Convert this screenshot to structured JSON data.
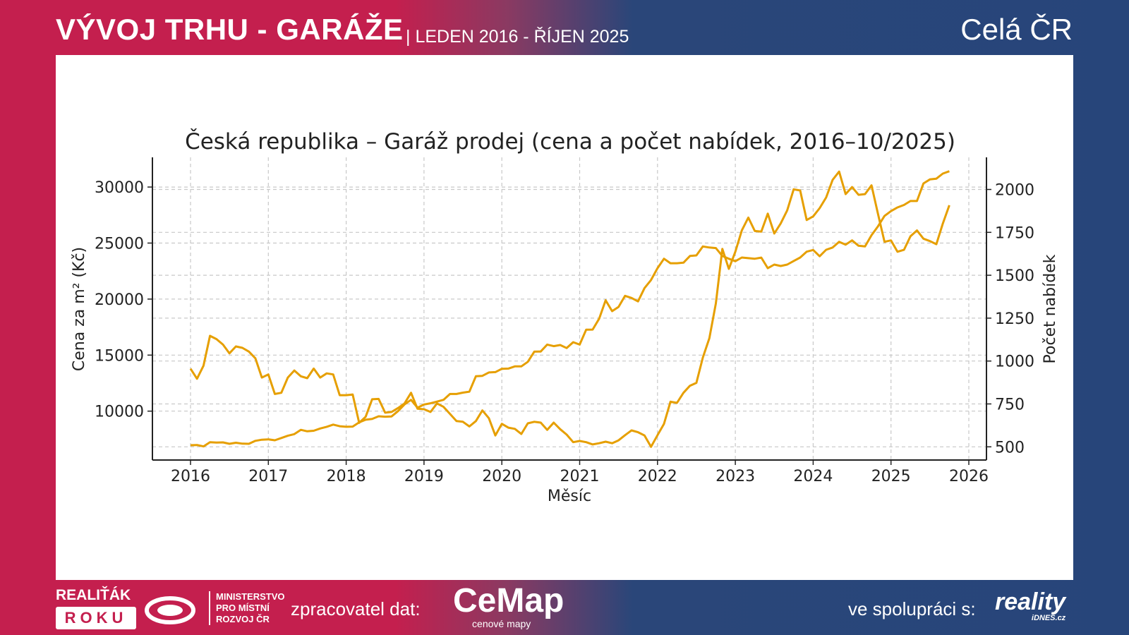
{
  "header": {
    "title": "VÝVOJ TRHU - GARÁŽE",
    "subtitle": "| LEDEN 2016 - ŘÍJEN 2025",
    "region": "Celá ČR"
  },
  "footer": {
    "realitak_line1": "REALIŤÁK",
    "realitak_line2": "ROKU",
    "ministry": [
      "MINISTERSTVO",
      "PRO MÍSTNÍ",
      "ROZVOJ ČR"
    ],
    "processor_label": "zpracovatel dat:",
    "cemap_logo": "CeMap",
    "cemap_tagline": "cenové mapy",
    "partner_label": "ve spolupráci s:",
    "reality_logo": "reality",
    "reality_sub": "iDNES.cz"
  },
  "chart_data": {
    "type": "line",
    "title": "Česká republika – Garáž prodej (cena a počet nabídek, 2016–10/2025)",
    "xlabel": "Měsíc",
    "ylabel": "Cena za m² (Kč)",
    "y2label": "Počet nabídek",
    "xlim": [
      2015.5,
      2026.25
    ],
    "ylim": [
      6350,
      32800
    ],
    "y2lim": [
      450,
      2120
    ],
    "xticks": [
      "2016",
      "2017",
      "2018",
      "2019",
      "2020",
      "2021",
      "2022",
      "2023",
      "2024",
      "2025",
      "2026"
    ],
    "yticks": [
      10000,
      15000,
      20000,
      25000,
      30000
    ],
    "y2ticks": [
      500,
      750,
      1000,
      1250,
      1500,
      1750,
      2000
    ],
    "grid": true,
    "color": "#e69f00",
    "start": "2016-01",
    "end": "2025-10",
    "series": [
      {
        "name": "Cena za m² (Kč)",
        "axis": "left",
        "values": [
          6960,
          6980,
          6850,
          7230,
          7200,
          7210,
          7085,
          7180,
          7100,
          7085,
          7350,
          7450,
          7480,
          7400,
          7600,
          7800,
          7950,
          8330,
          8200,
          8250,
          8450,
          8600,
          8800,
          8650,
          8600,
          8620,
          9000,
          9230,
          9300,
          9540,
          9500,
          9530,
          10000,
          10600,
          11010,
          10300,
          10590,
          10700,
          10850,
          11010,
          11530,
          11530,
          11650,
          11740,
          13110,
          13150,
          13450,
          13480,
          13780,
          13800,
          13990,
          13990,
          14400,
          15310,
          15320,
          15940,
          15800,
          15900,
          15630,
          16150,
          15940,
          17270,
          17280,
          18250,
          19890,
          18920,
          19300,
          20290,
          20100,
          19790,
          20980,
          21700,
          22760,
          23600,
          23200,
          23200,
          23250,
          23850,
          23900,
          24700,
          24600,
          24550,
          23850,
          23600,
          23380,
          23710,
          23650,
          23600,
          23700,
          22760,
          23080,
          22950,
          23080,
          23400,
          23710,
          24230,
          24380,
          23820,
          24400,
          24600,
          25110,
          24860,
          25240,
          24760,
          24700,
          25700,
          26500,
          27420,
          27850,
          28180,
          28400,
          28750,
          28750,
          30320,
          30680,
          30750,
          31200,
          31410
        ]
      },
      {
        "name": "Počet nabídek",
        "axis": "right",
        "values": [
          955,
          897,
          973,
          1147,
          1128,
          1096,
          1045,
          1085,
          1077,
          1055,
          1016,
          904,
          922,
          808,
          815,
          904,
          945,
          911,
          900,
          956,
          904,
          928,
          922,
          801,
          801,
          805,
          640,
          675,
          777,
          779,
          699,
          703,
          726,
          753,
          815,
          722,
          719,
          703,
          753,
          733,
          692,
          650,
          646,
          619,
          650,
          712,
          667,
          566,
          634,
          612,
          605,
          575,
          637,
          646,
          641,
          599,
          641,
          603,
          571,
          527,
          534,
          527,
          514,
          521,
          530,
          521,
          538,
          568,
          596,
          585,
          566,
          500,
          568,
          634,
          763,
          756,
          815,
          856,
          873,
          1021,
          1133,
          1336,
          1654,
          1537,
          1637,
          1761,
          1836,
          1758,
          1754,
          1859,
          1743,
          1802,
          1878,
          2001,
          1994,
          1822,
          1843,
          1891,
          1953,
          2056,
          2104,
          1973,
          2014,
          1969,
          1973,
          2024,
          1857,
          1695,
          1703,
          1637,
          1648,
          1727,
          1761,
          1713,
          1699,
          1681,
          1802,
          1908
        ]
      }
    ]
  }
}
